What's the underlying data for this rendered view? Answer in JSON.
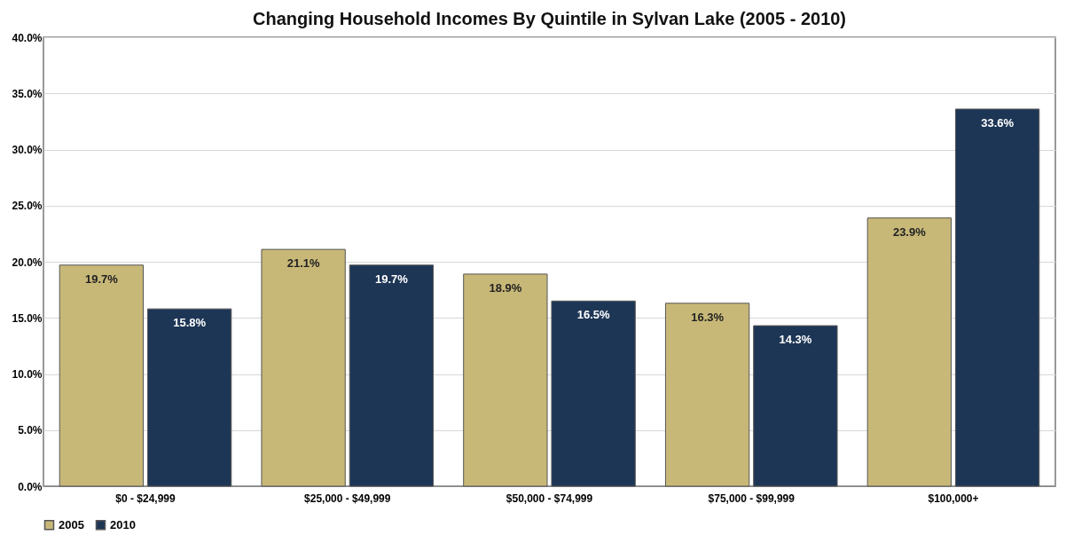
{
  "chart_data": {
    "type": "bar",
    "title": "Changing Household Incomes By Quintile in Sylvan Lake (2005 - 2010)",
    "categories": [
      "$0 - $24,999",
      "$25,000 - $49,999",
      "$50,000 - $74,999",
      "$75,000 - $99,999",
      "$100,000+"
    ],
    "series": [
      {
        "name": "2005",
        "color": "#c8b878",
        "values": [
          19.7,
          21.1,
          18.9,
          16.3,
          23.9
        ],
        "value_labels": [
          "19.7%",
          "21.1%",
          "18.9%",
          "16.3%",
          "23.9%"
        ]
      },
      {
        "name": "2010",
        "color": "#1e3656",
        "values": [
          15.8,
          19.7,
          16.5,
          14.3,
          33.6
        ],
        "value_labels": [
          "15.8%",
          "19.7%",
          "16.5%",
          "14.3%",
          "33.6%"
        ]
      }
    ],
    "ylim": [
      0,
      40
    ],
    "yticks": [
      {
        "value": 0,
        "label": "0.0%"
      },
      {
        "value": 5,
        "label": "5.0%"
      },
      {
        "value": 10,
        "label": "10.0%"
      },
      {
        "value": 15,
        "label": "15.0%"
      },
      {
        "value": 20,
        "label": "20.0%"
      },
      {
        "value": 25,
        "label": "25.0%"
      },
      {
        "value": 30,
        "label": "30.0%"
      },
      {
        "value": 35,
        "label": "35.0%"
      },
      {
        "value": 40,
        "label": "40.0%"
      }
    ],
    "grid": "y",
    "legend": "bottom"
  }
}
